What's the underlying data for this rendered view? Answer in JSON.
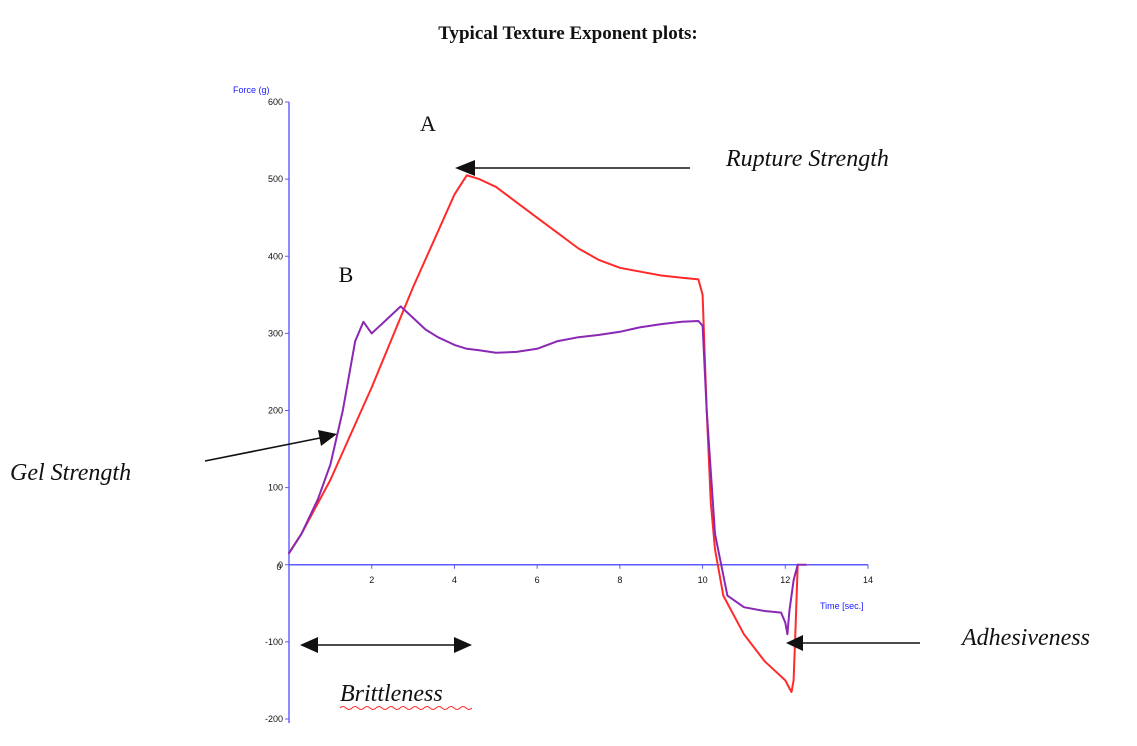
{
  "chart_data": {
    "type": "line",
    "title": "Typical Texture Exponent plots:",
    "xlabel": "Time [sec.]",
    "ylabel": "Force (g)",
    "xlim": [
      0,
      14
    ],
    "ylim": [
      -200,
      600
    ],
    "x_ticks": [
      0,
      2,
      4,
      6,
      8,
      10,
      12,
      14
    ],
    "x_tick_labels": [
      "0",
      "2",
      "4",
      "6",
      "8",
      "10",
      "12",
      "14"
    ],
    "y_ticks": [
      -200,
      -100,
      0,
      100,
      200,
      300,
      400,
      500,
      600
    ],
    "y_tick_labels": [
      "-200",
      "-100",
      "0",
      "100",
      "200",
      "300",
      "400",
      "500",
      "600"
    ],
    "grid": false,
    "colors": {
      "A": "#ff2a2a",
      "B": "#8a28b4",
      "axis": "#5b5bff",
      "arrow": "#111111"
    },
    "series": [
      {
        "name": "A",
        "x": [
          0,
          0.3,
          0.7,
          1.0,
          1.5,
          2.0,
          2.5,
          3.0,
          3.5,
          4.0,
          4.3,
          4.6,
          5.0,
          5.5,
          6.0,
          6.5,
          7.0,
          7.5,
          8.0,
          8.5,
          9.0,
          9.5,
          9.9,
          10.0,
          10.1,
          10.2,
          10.3,
          10.5,
          11.0,
          11.5,
          11.8,
          12.0,
          12.1,
          12.15,
          12.2,
          12.25,
          12.3
        ],
        "y": [
          15,
          40,
          80,
          110,
          170,
          230,
          295,
          360,
          420,
          480,
          505,
          500,
          490,
          470,
          450,
          430,
          410,
          395,
          385,
          380,
          375,
          372,
          370,
          350,
          200,
          80,
          20,
          -40,
          -90,
          -125,
          -140,
          -150,
          -160,
          -165,
          -150,
          -80,
          0
        ]
      },
      {
        "name": "B",
        "x": [
          0,
          0.3,
          0.7,
          1.0,
          1.3,
          1.6,
          1.8,
          2.0,
          2.2,
          2.5,
          2.7,
          3.0,
          3.3,
          3.6,
          4.0,
          4.3,
          4.6,
          5.0,
          5.5,
          6.0,
          6.5,
          7.0,
          7.5,
          8.0,
          8.5,
          9.0,
          9.5,
          9.9,
          10.0,
          10.1,
          10.3,
          10.6,
          11.0,
          11.5,
          11.9,
          12.0,
          12.05,
          12.1,
          12.2,
          12.3,
          12.5
        ],
        "y": [
          15,
          40,
          85,
          130,
          200,
          290,
          315,
          300,
          310,
          325,
          335,
          320,
          305,
          295,
          285,
          280,
          278,
          275,
          276,
          280,
          290,
          295,
          298,
          302,
          308,
          312,
          315,
          316,
          310,
          200,
          40,
          -40,
          -55,
          -60,
          -62,
          -75,
          -90,
          -60,
          -20,
          0,
          0
        ]
      }
    ],
    "annotations": [
      {
        "text": "Rupture Strength",
        "x": 4.2,
        "y": 505
      },
      {
        "text": "Gel Strength",
        "x": 1.1,
        "y": 170
      },
      {
        "text": "Brittleness",
        "x_range": [
          0.4,
          4.3
        ],
        "y": -105
      },
      {
        "text": "Adhesiveness",
        "x": 12.3,
        "y": -105
      }
    ],
    "curve_labels": [
      {
        "text": "A",
        "series": "A"
      },
      {
        "text": "B",
        "series": "B"
      }
    ]
  }
}
